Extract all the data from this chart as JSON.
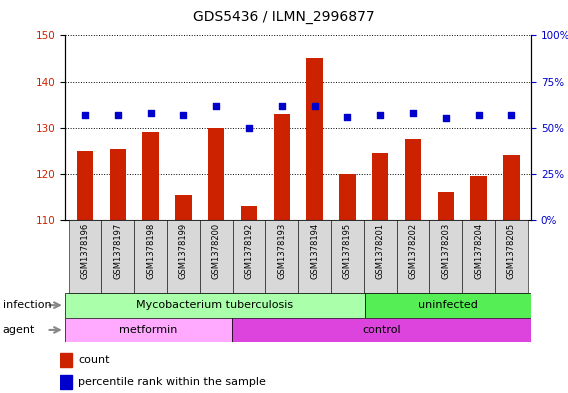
{
  "title": "GDS5436 / ILMN_2996877",
  "samples": [
    "GSM1378196",
    "GSM1378197",
    "GSM1378198",
    "GSM1378199",
    "GSM1378200",
    "GSM1378192",
    "GSM1378193",
    "GSM1378194",
    "GSM1378195",
    "GSM1378201",
    "GSM1378202",
    "GSM1378203",
    "GSM1378204",
    "GSM1378205"
  ],
  "counts": [
    125,
    125.5,
    129,
    115.5,
    130,
    113,
    133,
    145,
    120,
    124.5,
    127.5,
    116,
    119.5,
    124
  ],
  "percentiles": [
    57,
    57,
    58,
    57,
    62,
    50,
    62,
    62,
    56,
    57,
    58,
    55,
    57,
    57
  ],
  "ylim_left": [
    110,
    150
  ],
  "ylim_right": [
    0,
    100
  ],
  "yticks_left": [
    110,
    120,
    130,
    140,
    150
  ],
  "yticks_right": [
    0,
    25,
    50,
    75,
    100
  ],
  "bar_color": "#cc2200",
  "dot_color": "#0000cc",
  "bar_width": 0.5,
  "infection_groups": [
    {
      "label": "Mycobacterium tuberculosis",
      "start": 0,
      "end": 9,
      "color": "#aaffaa"
    },
    {
      "label": "uninfected",
      "start": 9,
      "end": 14,
      "color": "#55ee55"
    }
  ],
  "agent_groups": [
    {
      "label": "metformin",
      "start": 0,
      "end": 5,
      "color": "#ffaaff"
    },
    {
      "label": "control",
      "start": 5,
      "end": 14,
      "color": "#dd44dd"
    }
  ],
  "infection_label": "infection",
  "agent_label": "agent",
  "legend_count_label": "count",
  "legend_percentile_label": "percentile rank within the sample",
  "title_fontsize": 10,
  "tick_fontsize": 7.5,
  "label_fontsize": 8,
  "annotation_fontsize": 8,
  "xticklabel_fontsize": 6,
  "bg_color": "#d8d8d8"
}
